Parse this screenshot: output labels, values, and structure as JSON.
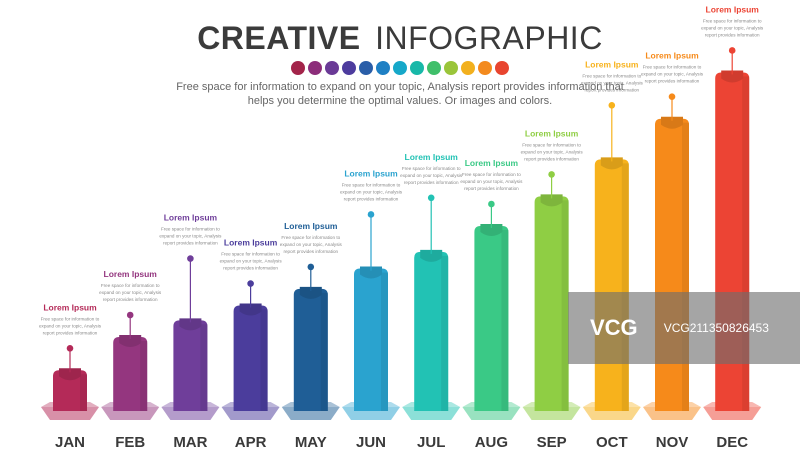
{
  "header": {
    "title_bold": "CREATIVE",
    "title_light": "INFOGRAPHIC",
    "subtitle": "Free space for information to expand on your topic, Analysis report provides information that helps you determine the optimal values. Or images and colors."
  },
  "palette": [
    "#a3244a",
    "#8c2d7a",
    "#6a3a96",
    "#4d3c9e",
    "#2a5ea8",
    "#1f80c4",
    "#16a8c9",
    "#18b8a8",
    "#3fbf6a",
    "#9ac53a",
    "#f2b01e",
    "#f38a1e",
    "#e8452f"
  ],
  "watermark": {
    "logo": "VCG",
    "id": "VCG211350826453"
  },
  "chart_data": {
    "type": "bar",
    "categories": [
      "JAN",
      "FEB",
      "MAR",
      "APR",
      "MAY",
      "JUN",
      "JUL",
      "AUG",
      "SEP",
      "OCT",
      "NOV",
      "DEC"
    ],
    "values": [
      22,
      40,
      49,
      57,
      66,
      77,
      86,
      100,
      116,
      136,
      158,
      183
    ],
    "ylim": [
      0,
      200
    ],
    "colors": [
      "#b42a58",
      "#94367f",
      "#6f3e9a",
      "#4b3d9c",
      "#1f5e96",
      "#2aa3cf",
      "#22c2b4",
      "#3ac986",
      "#8fce44",
      "#f7b21c",
      "#f68a1a",
      "#ec4434"
    ],
    "labels": [
      {
        "title": "Lorem Ipsum",
        "text": "Free space for information to expand on your topic, Analysis report provides information"
      },
      {
        "title": "Lorem Ipsum",
        "text": "Free space for information to expand on your topic, Analysis report provides information"
      },
      {
        "title": "Lorem Ipsum",
        "text": "Free space for information to expand on your topic, Analysis report provides information"
      },
      {
        "title": "Lorem Ipsum",
        "text": "Free space for information to expand on your topic, Analysis report provides information"
      },
      {
        "title": "Lorem Ipsum",
        "text": "Free space for information to expand on your topic, Analysis report provides information"
      },
      {
        "title": "Lorem Ipsum",
        "text": "Free space for information to expand on your topic, Analysis report provides information"
      },
      {
        "title": "Lorem Ipsum",
        "text": "Free space for information to expand on your topic, Analysis report provides information"
      },
      {
        "title": "Lorem Ipsum",
        "text": "Free space for information to expand on your topic, Analysis report provides information"
      },
      {
        "title": "Lorem Ipsum",
        "text": "Free space for information to expand on your topic, Analysis report provides information"
      },
      {
        "title": "Lorem Ipsum",
        "text": "Free space for information to expand on your topic, Analysis report provides information"
      },
      {
        "title": "Lorem Ipsum",
        "text": "Free space for information to expand on your topic, Analysis report provides information"
      },
      {
        "title": "Lorem Ipsum",
        "text": "Free space for information to expand on your topic, Analysis report provides information"
      }
    ],
    "callout_heights": [
      1,
      1,
      1.9,
      1,
      1,
      1.55,
      1.55,
      1,
      1,
      1.55,
      1,
      1
    ]
  }
}
